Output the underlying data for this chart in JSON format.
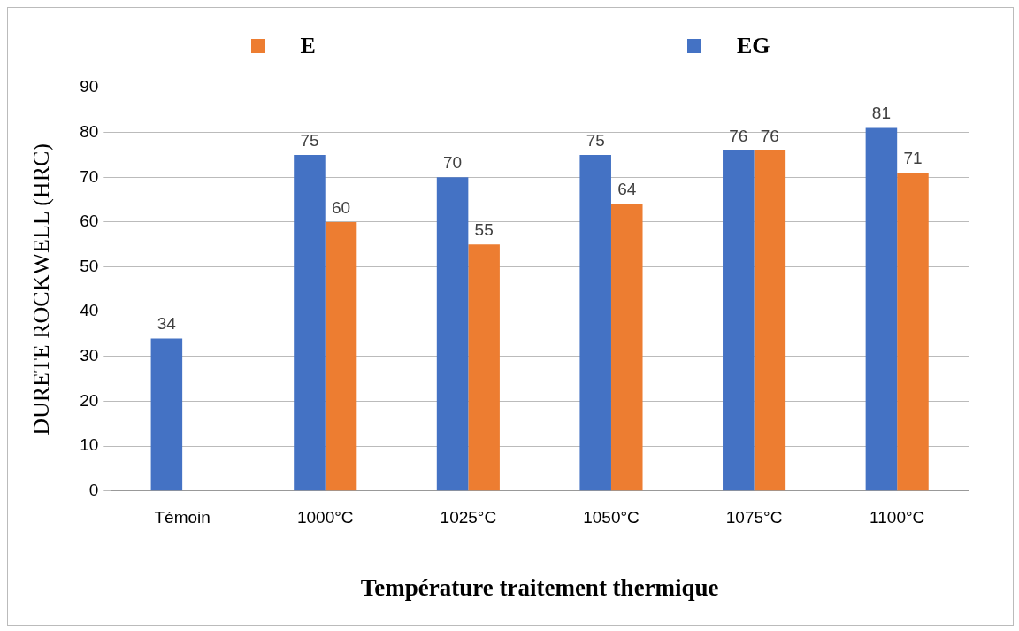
{
  "chart_data": {
    "type": "bar",
    "xlabel": "Température traitement thermique",
    "ylabel": "DURETE ROCKWELL (HRC)",
    "categories": [
      "Témoin",
      "1000°C",
      "1025°C",
      "1050°C",
      "1075°C",
      "1100°C"
    ],
    "series": [
      {
        "name": "EG",
        "color": "#4472c4",
        "values": [
          34,
          75,
          70,
          75,
          76,
          81
        ]
      },
      {
        "name": "E",
        "color": "#ed7d31",
        "values": [
          null,
          60,
          55,
          64,
          76,
          71
        ]
      }
    ],
    "ylim": [
      0,
      90
    ],
    "yticks": [
      0,
      10,
      20,
      30,
      40,
      50,
      60,
      70,
      80,
      90
    ],
    "grid": "y",
    "legend": "top",
    "data_labels": true
  }
}
